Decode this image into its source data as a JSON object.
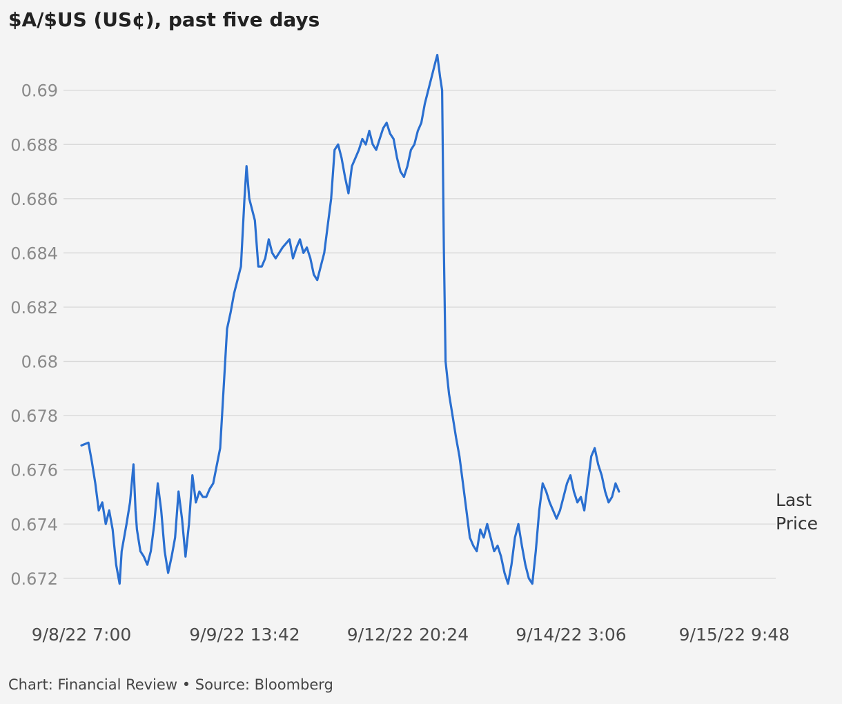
{
  "chart_data": {
    "type": "line",
    "title": "$A/$US (US¢), past five days",
    "y_ticks": [
      "0.672",
      "0.674",
      "0.676",
      "0.678",
      "0.68",
      "0.682",
      "0.684",
      "0.686",
      "0.688",
      "0.69"
    ],
    "ylim": [
      0.6708,
      0.6918
    ],
    "grid": "horizontal",
    "x_ticks": [
      {
        "label": "9/8/22 7:00",
        "pos": 0
      },
      {
        "label": "9/9/22 13:42",
        "pos": 0.2353
      },
      {
        "label": "9/12/22 20:24",
        "pos": 0.4706
      },
      {
        "label": "9/14/22 3:06",
        "pos": 0.7059
      },
      {
        "label": "9/15/22 9:48",
        "pos": 0.9412
      }
    ],
    "series": [
      {
        "name": "Last Price",
        "color": "#2a6fd0",
        "points": [
          [
            0.0,
            0.6769
          ],
          [
            0.01,
            0.677
          ],
          [
            0.015,
            0.6763
          ],
          [
            0.02,
            0.6755
          ],
          [
            0.025,
            0.6745
          ],
          [
            0.03,
            0.6748
          ],
          [
            0.035,
            0.674
          ],
          [
            0.04,
            0.6745
          ],
          [
            0.045,
            0.6738
          ],
          [
            0.05,
            0.6725
          ],
          [
            0.055,
            0.6718
          ],
          [
            0.058,
            0.673
          ],
          [
            0.065,
            0.674
          ],
          [
            0.07,
            0.6748
          ],
          [
            0.075,
            0.6762
          ],
          [
            0.078,
            0.6745
          ],
          [
            0.08,
            0.6738
          ],
          [
            0.085,
            0.673
          ],
          [
            0.09,
            0.6728
          ],
          [
            0.095,
            0.6725
          ],
          [
            0.1,
            0.673
          ],
          [
            0.105,
            0.674
          ],
          [
            0.11,
            0.6755
          ],
          [
            0.115,
            0.6745
          ],
          [
            0.12,
            0.673
          ],
          [
            0.125,
            0.6722
          ],
          [
            0.13,
            0.6728
          ],
          [
            0.135,
            0.6735
          ],
          [
            0.14,
            0.6752
          ],
          [
            0.145,
            0.6742
          ],
          [
            0.15,
            0.6728
          ],
          [
            0.155,
            0.674
          ],
          [
            0.16,
            0.6758
          ],
          [
            0.165,
            0.6748
          ],
          [
            0.17,
            0.6752
          ],
          [
            0.175,
            0.675
          ],
          [
            0.18,
            0.675
          ],
          [
            0.185,
            0.6753
          ],
          [
            0.19,
            0.6755
          ],
          [
            0.2,
            0.6768
          ],
          [
            0.205,
            0.679
          ],
          [
            0.21,
            0.6812
          ],
          [
            0.215,
            0.6818
          ],
          [
            0.22,
            0.6825
          ],
          [
            0.225,
            0.683
          ],
          [
            0.23,
            0.6835
          ],
          [
            0.235,
            0.686
          ],
          [
            0.238,
            0.6872
          ],
          [
            0.242,
            0.686
          ],
          [
            0.25,
            0.6852
          ],
          [
            0.255,
            0.6835
          ],
          [
            0.26,
            0.6835
          ],
          [
            0.265,
            0.6838
          ],
          [
            0.27,
            0.6845
          ],
          [
            0.275,
            0.684
          ],
          [
            0.28,
            0.6838
          ],
          [
            0.29,
            0.6842
          ],
          [
            0.3,
            0.6845
          ],
          [
            0.305,
            0.6838
          ],
          [
            0.31,
            0.6842
          ],
          [
            0.315,
            0.6845
          ],
          [
            0.32,
            0.684
          ],
          [
            0.325,
            0.6842
          ],
          [
            0.33,
            0.6838
          ],
          [
            0.335,
            0.6832
          ],
          [
            0.34,
            0.683
          ],
          [
            0.345,
            0.6835
          ],
          [
            0.35,
            0.684
          ],
          [
            0.355,
            0.685
          ],
          [
            0.36,
            0.686
          ],
          [
            0.365,
            0.6878
          ],
          [
            0.37,
            0.688
          ],
          [
            0.375,
            0.6875
          ],
          [
            0.38,
            0.6868
          ],
          [
            0.385,
            0.6862
          ],
          [
            0.39,
            0.6872
          ],
          [
            0.395,
            0.6875
          ],
          [
            0.4,
            0.6878
          ],
          [
            0.405,
            0.6882
          ],
          [
            0.41,
            0.688
          ],
          [
            0.415,
            0.6885
          ],
          [
            0.42,
            0.688
          ],
          [
            0.425,
            0.6878
          ],
          [
            0.43,
            0.6882
          ],
          [
            0.435,
            0.6886
          ],
          [
            0.44,
            0.6888
          ],
          [
            0.445,
            0.6884
          ],
          [
            0.45,
            0.6882
          ],
          [
            0.455,
            0.6875
          ],
          [
            0.46,
            0.687
          ],
          [
            0.465,
            0.6868
          ],
          [
            0.47,
            0.6872
          ],
          [
            0.475,
            0.6878
          ],
          [
            0.48,
            0.688
          ],
          [
            0.485,
            0.6885
          ],
          [
            0.49,
            0.6888
          ],
          [
            0.495,
            0.6895
          ],
          [
            0.5,
            0.69
          ],
          [
            0.505,
            0.6905
          ],
          [
            0.51,
            0.691
          ],
          [
            0.513,
            0.6913
          ],
          [
            0.517,
            0.6905
          ],
          [
            0.52,
            0.69
          ],
          [
            0.5225,
            0.6842
          ],
          [
            0.525,
            0.68
          ],
          [
            0.53,
            0.6788
          ],
          [
            0.535,
            0.678
          ],
          [
            0.54,
            0.6772
          ],
          [
            0.545,
            0.6765
          ],
          [
            0.55,
            0.6755
          ],
          [
            0.555,
            0.6745
          ],
          [
            0.56,
            0.6735
          ],
          [
            0.565,
            0.6732
          ],
          [
            0.57,
            0.673
          ],
          [
            0.575,
            0.6738
          ],
          [
            0.58,
            0.6735
          ],
          [
            0.585,
            0.674
          ],
          [
            0.59,
            0.6735
          ],
          [
            0.595,
            0.673
          ],
          [
            0.6,
            0.6732
          ],
          [
            0.605,
            0.6728
          ],
          [
            0.61,
            0.6722
          ],
          [
            0.615,
            0.6718
          ],
          [
            0.62,
            0.6725
          ],
          [
            0.625,
            0.6735
          ],
          [
            0.63,
            0.674
          ],
          [
            0.635,
            0.6732
          ],
          [
            0.64,
            0.6725
          ],
          [
            0.645,
            0.672
          ],
          [
            0.65,
            0.6718
          ],
          [
            0.655,
            0.673
          ],
          [
            0.66,
            0.6745
          ],
          [
            0.665,
            0.6755
          ],
          [
            0.67,
            0.6752
          ],
          [
            0.675,
            0.6748
          ],
          [
            0.68,
            0.6745
          ],
          [
            0.685,
            0.6742
          ],
          [
            0.69,
            0.6745
          ],
          [
            0.695,
            0.675
          ],
          [
            0.7,
            0.6755
          ],
          [
            0.705,
            0.6758
          ],
          [
            0.71,
            0.6752
          ],
          [
            0.715,
            0.6748
          ],
          [
            0.72,
            0.675
          ],
          [
            0.725,
            0.6745
          ],
          [
            0.73,
            0.6755
          ],
          [
            0.735,
            0.6765
          ],
          [
            0.74,
            0.6768
          ],
          [
            0.745,
            0.6762
          ],
          [
            0.75,
            0.6758
          ],
          [
            0.755,
            0.6752
          ],
          [
            0.76,
            0.6748
          ],
          [
            0.765,
            0.675
          ],
          [
            0.77,
            0.6755
          ],
          [
            0.775,
            0.6752
          ]
        ]
      }
    ]
  },
  "footer": "Chart: Financial Review • Source: Bloomberg",
  "end_label": {
    "line1": "Last",
    "line2": "Price"
  }
}
